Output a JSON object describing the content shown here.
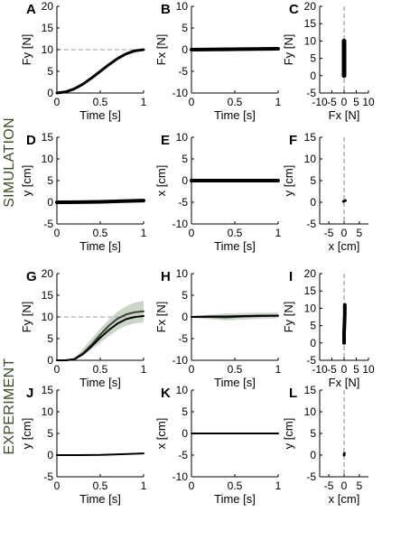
{
  "row_labels": [
    "SIMULATION",
    "EXPERIMENT"
  ],
  "colors": {
    "line": "#000000",
    "mean_dark": "#3a4032",
    "band": "#9fb59a",
    "dashed": "#999999"
  },
  "chart_data": [
    {
      "id": "A",
      "type": "line",
      "xlabel": "Time [s]",
      "ylabel": "Fy [N]",
      "xlim": [
        0,
        1
      ],
      "ylim": [
        0,
        20
      ],
      "xticks": [
        0,
        0.5,
        1
      ],
      "xticklabels": [
        "0",
        "0.5",
        "1"
      ],
      "yticks": [
        0,
        5,
        10,
        15,
        20
      ],
      "yticklabels": [
        "0",
        "5",
        "10",
        "15",
        "20"
      ],
      "hline": 10,
      "series": [
        {
          "x": [
            0,
            0.1,
            0.2,
            0.3,
            0.4,
            0.5,
            0.6,
            0.7,
            0.8,
            0.9,
            1.0
          ],
          "y": [
            0,
            0.25,
            0.95,
            2.05,
            3.45,
            5.0,
            6.55,
            7.95,
            9.05,
            9.75,
            10.0
          ],
          "width": 3
        }
      ]
    },
    {
      "id": "B",
      "type": "line",
      "xlabel": "Time [s]",
      "ylabel": "Fx [N]",
      "xlim": [
        0,
        1
      ],
      "ylim": [
        -10,
        10
      ],
      "xticks": [
        0,
        0.5,
        1
      ],
      "xticklabels": [
        "0",
        "0.5",
        "1"
      ],
      "yticks": [
        -10,
        -5,
        0,
        5,
        10
      ],
      "yticklabels": [
        "-10",
        "-5",
        "0",
        "5",
        "10"
      ],
      "series": [
        {
          "x": [
            0,
            0.25,
            0.5,
            0.75,
            1.0
          ],
          "y": [
            0,
            0.05,
            0.1,
            0.15,
            0.2
          ],
          "width": 4
        }
      ]
    },
    {
      "id": "C",
      "type": "scatter",
      "xlabel": "Fx [N]",
      "ylabel": "Fy [N]",
      "xlim": [
        -10,
        10
      ],
      "ylim": [
        -5,
        20
      ],
      "xticks": [
        -10,
        -5,
        0,
        5,
        10
      ],
      "xticklabels": [
        "-10",
        "-5",
        "0",
        "5",
        "10"
      ],
      "yticks": [
        -5,
        0,
        5,
        10,
        15,
        20
      ],
      "yticklabels": [
        "-5",
        "0",
        "5",
        "10",
        "15",
        "20"
      ],
      "vline": 0,
      "series": [
        {
          "x": [
            0,
            0
          ],
          "y": [
            0,
            10
          ],
          "width": 5
        }
      ]
    },
    {
      "id": "D",
      "type": "line",
      "xlabel": "Time [s]",
      "ylabel": "y [cm]",
      "xlim": [
        0,
        1
      ],
      "ylim": [
        -5,
        15
      ],
      "xticks": [
        0,
        0.5,
        1
      ],
      "xticklabels": [
        "0",
        "0.5",
        "1"
      ],
      "yticks": [
        -5,
        0,
        5,
        10,
        15
      ],
      "yticklabels": [
        "-5",
        "0",
        "5",
        "10",
        "15"
      ],
      "series": [
        {
          "x": [
            0,
            0.25,
            0.5,
            0.75,
            1.0
          ],
          "y": [
            0,
            0.02,
            0.1,
            0.25,
            0.4
          ],
          "width": 4
        }
      ]
    },
    {
      "id": "E",
      "type": "line",
      "xlabel": "Time [s]",
      "ylabel": "x [cm]",
      "xlim": [
        0,
        1
      ],
      "ylim": [
        -10,
        10
      ],
      "xticks": [
        0,
        0.5,
        1
      ],
      "xticklabels": [
        "0",
        "0.5",
        "1"
      ],
      "yticks": [
        -10,
        -5,
        0,
        5,
        10
      ],
      "yticklabels": [
        "-10",
        "-5",
        "0",
        "5",
        "10"
      ],
      "series": [
        {
          "x": [
            0,
            1
          ],
          "y": [
            0,
            0
          ],
          "width": 4
        }
      ]
    },
    {
      "id": "F",
      "type": "scatter",
      "xlabel": "x [cm]",
      "ylabel": "y [cm]",
      "xlim": [
        -8,
        8
      ],
      "ylim": [
        -5,
        15
      ],
      "xticks": [
        -5,
        0,
        5
      ],
      "xticklabels": [
        "-5",
        "0",
        "5"
      ],
      "yticks": [
        -5,
        0,
        5,
        10,
        15
      ],
      "yticklabels": [
        "-5",
        "0",
        "5",
        "10",
        "15"
      ],
      "vline": 0,
      "series": [
        {
          "x": [
            -0.2,
            0.4
          ],
          "y": [
            0.2,
            0.4
          ],
          "width": 3
        }
      ]
    },
    {
      "id": "G",
      "type": "line",
      "xlabel": "Time [s]",
      "ylabel": "Fy [N]",
      "xlim": [
        0,
        1
      ],
      "ylim": [
        0,
        20
      ],
      "xticks": [
        0,
        0.5,
        1
      ],
      "xticklabels": [
        "0",
        "0.5",
        "1"
      ],
      "yticks": [
        0,
        5,
        10,
        15,
        20
      ],
      "yticklabels": [
        "0",
        "5",
        "10",
        "15",
        "20"
      ],
      "hline": 10,
      "band": {
        "x": [
          0,
          0.1,
          0.2,
          0.3,
          0.4,
          0.5,
          0.6,
          0.7,
          0.8,
          0.9,
          1.0
        ],
        "lower": [
          0,
          0,
          0.2,
          1.1,
          2.5,
          4.0,
          5.6,
          7.0,
          8.0,
          8.5,
          8.8
        ],
        "upper": [
          0,
          0,
          0.5,
          2.6,
          5.0,
          7.3,
          9.4,
          11.2,
          12.5,
          13.3,
          13.7
        ]
      },
      "series": [
        {
          "x": [
            0,
            0.1,
            0.2,
            0.3,
            0.4,
            0.5,
            0.6,
            0.7,
            0.8,
            0.9,
            1.0
          ],
          "y": [
            0,
            0,
            0.3,
            1.6,
            3.6,
            5.9,
            8.0,
            9.6,
            10.6,
            11.1,
            11.3
          ],
          "width": 2,
          "color": "mean_dark"
        },
        {
          "x": [
            0,
            0.1,
            0.2,
            0.3,
            0.4,
            0.5,
            0.6,
            0.7,
            0.8,
            0.9,
            1.0
          ],
          "y": [
            0,
            0,
            0.2,
            1.4,
            3.2,
            5.2,
            7.0,
            8.5,
            9.5,
            10.0,
            10.2
          ],
          "width": 2,
          "color": "line"
        }
      ]
    },
    {
      "id": "H",
      "type": "line",
      "xlabel": "Time [s]",
      "ylabel": "Fx [N]",
      "xlim": [
        0,
        1
      ],
      "ylim": [
        -10,
        10
      ],
      "xticks": [
        0,
        0.5,
        1
      ],
      "xticklabels": [
        "0",
        "0.5",
        "1"
      ],
      "yticks": [
        -10,
        -5,
        0,
        5,
        10
      ],
      "yticklabels": [
        "-10",
        "-5",
        "0",
        "5",
        "10"
      ],
      "band": {
        "x": [
          0,
          0.2,
          0.4,
          0.6,
          0.8,
          1.0
        ],
        "lower": [
          -0.2,
          -0.5,
          -0.8,
          -0.6,
          -0.4,
          -0.3
        ],
        "upper": [
          0.2,
          0.5,
          0.8,
          0.9,
          1.0,
          1.0
        ]
      },
      "series": [
        {
          "x": [
            0,
            0.2,
            0.4,
            0.6,
            0.8,
            1.0
          ],
          "y": [
            0,
            0,
            -0.1,
            0.1,
            0.2,
            0.3
          ],
          "width": 2,
          "color": "mean_dark"
        },
        {
          "x": [
            0,
            0.2,
            0.4,
            0.6,
            0.8,
            1.0
          ],
          "y": [
            0,
            0.1,
            0.1,
            0.2,
            0.3,
            0.3
          ],
          "width": 2,
          "color": "line"
        }
      ]
    },
    {
      "id": "I",
      "type": "scatter",
      "xlabel": "Fx [N]",
      "ylabel": "Fy [N]",
      "xlim": [
        -10,
        10
      ],
      "ylim": [
        -5,
        20
      ],
      "xticks": [
        -10,
        -5,
        0,
        5,
        10
      ],
      "xticklabels": [
        "-10",
        "-5",
        "0",
        "5",
        "10"
      ],
      "yticks": [
        -5,
        0,
        5,
        10,
        15,
        20
      ],
      "yticklabels": [
        "-5",
        "0",
        "5",
        "10",
        "15",
        "20"
      ],
      "vline": 0,
      "series": [
        {
          "x": [
            0,
            0,
            0.2,
            0.3,
            0.3
          ],
          "y": [
            0,
            3,
            6,
            8.5,
            11
          ],
          "width": 4
        }
      ]
    },
    {
      "id": "J",
      "type": "line",
      "xlabel": "Time [s]",
      "ylabel": "y [cm]",
      "xlim": [
        0,
        1
      ],
      "ylim": [
        -5,
        15
      ],
      "xticks": [
        0,
        0.5,
        1
      ],
      "xticklabels": [
        "0",
        "0.5",
        "1"
      ],
      "yticks": [
        -5,
        0,
        5,
        10,
        15
      ],
      "yticklabels": [
        "-5",
        "0",
        "5",
        "10",
        "15"
      ],
      "series": [
        {
          "x": [
            0,
            0.25,
            0.5,
            0.75,
            1.0
          ],
          "y": [
            0,
            0,
            0.05,
            0.2,
            0.4
          ],
          "width": 2
        }
      ]
    },
    {
      "id": "K",
      "type": "line",
      "xlabel": "Time [s]",
      "ylabel": "x [cm]",
      "xlim": [
        0,
        1
      ],
      "ylim": [
        -10,
        10
      ],
      "xticks": [
        0,
        0.5,
        1
      ],
      "xticklabels": [
        "0",
        "0.5",
        "1"
      ],
      "yticks": [
        -10,
        -5,
        0,
        5,
        10
      ],
      "yticklabels": [
        "-10",
        "-5",
        "0",
        "5",
        "10"
      ],
      "series": [
        {
          "x": [
            0,
            1
          ],
          "y": [
            0,
            0
          ],
          "width": 2
        }
      ]
    },
    {
      "id": "L",
      "type": "scatter",
      "xlabel": "x [cm]",
      "ylabel": "y [cm]",
      "xlim": [
        -8,
        8
      ],
      "ylim": [
        -5,
        15
      ],
      "xticks": [
        -5,
        0,
        5
      ],
      "xticklabels": [
        "-5",
        "0",
        "5"
      ],
      "yticks": [
        -5,
        0,
        5,
        10,
        15
      ],
      "yticklabels": [
        "-5",
        "0",
        "5",
        "10",
        "15"
      ],
      "vline": 0,
      "series": [
        {
          "x": [
            0,
            0.1
          ],
          "y": [
            0,
            0.4
          ],
          "width": 3
        }
      ]
    }
  ]
}
